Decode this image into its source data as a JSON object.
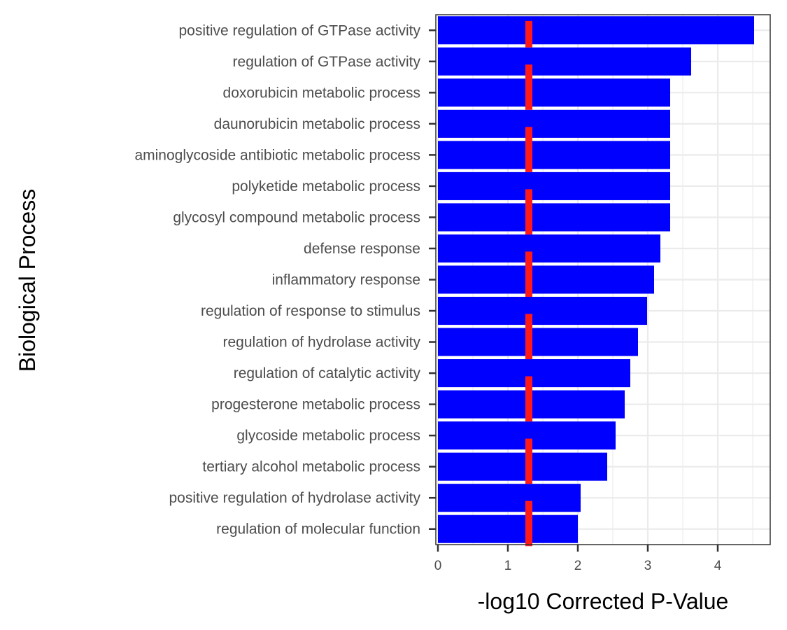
{
  "chart_data": {
    "type": "bar",
    "orientation": "horizontal",
    "xlabel": "-log10 Corrected P-Value",
    "ylabel": "Biological Process",
    "xlim": [
      -0.03,
      4.75
    ],
    "xticks": [
      0,
      1,
      2,
      3,
      4
    ],
    "x_tick_labels": [
      "0",
      "1",
      "2",
      "3",
      "4"
    ],
    "grid": true,
    "legend": "none",
    "categories": [
      "positive regulation of GTPase activity",
      "regulation of GTPase activity",
      "doxorubicin metabolic process",
      "daunorubicin metabolic process",
      "aminoglycoside antibiotic metabolic process",
      "polyketide metabolic process",
      "glycosyl compound metabolic process",
      "defense response",
      "inflammatory response",
      "regulation of response to stimulus",
      "regulation of hydrolase activity",
      "regulation of catalytic activity",
      "progesterone metabolic process",
      "glycoside metabolic process",
      "tertiary alcohol metabolic process",
      "positive regulation of hydrolase activity",
      "regulation of molecular function"
    ],
    "values": [
      4.52,
      3.62,
      3.32,
      3.32,
      3.32,
      3.32,
      3.32,
      3.18,
      3.09,
      2.99,
      2.86,
      2.75,
      2.67,
      2.54,
      2.42,
      2.04,
      2.0
    ],
    "threshold": 1.3,
    "colors": {
      "bar": "#0000ff",
      "threshold": "#ff1a1a",
      "grid": "#ebebeb",
      "panel_border": "#333333"
    }
  }
}
